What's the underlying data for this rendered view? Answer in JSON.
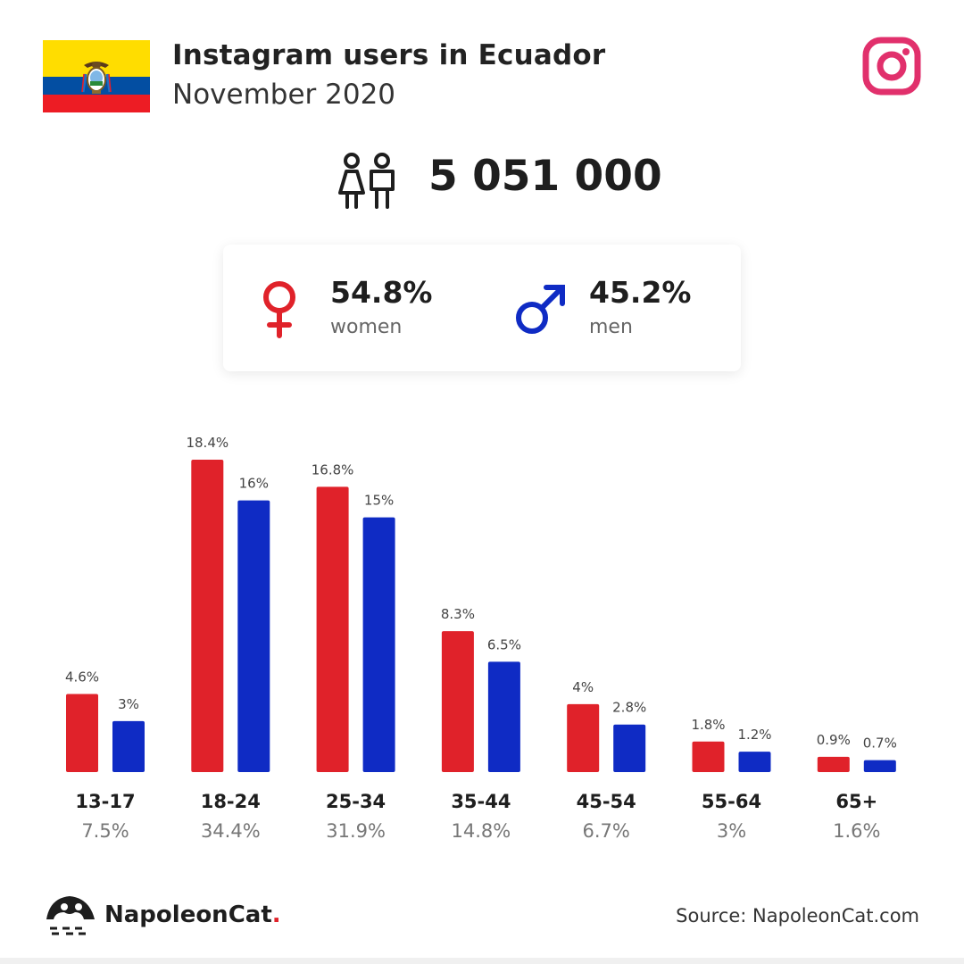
{
  "header": {
    "title": "Instagram users in Ecuador",
    "subtitle": "November 2020"
  },
  "total": {
    "value": "5 051 000"
  },
  "gender": {
    "women_pct": "54.8%",
    "women_label": "women",
    "men_pct": "45.2%",
    "men_label": "men"
  },
  "colors": {
    "women": "#e0222a",
    "men": "#0f2bc4",
    "instagram": "#e1306c",
    "flag_yellow": "#ffdd00",
    "flag_blue": "#034ea2",
    "flag_red": "#ed1c24"
  },
  "footer": {
    "brand": "NapoleonCat",
    "brand_dot": ".",
    "source": "Source: NapoleonCat.com"
  },
  "chart_data": {
    "type": "bar",
    "categories": [
      "13-17",
      "18-24",
      "25-34",
      "35-44",
      "45-54",
      "55-64",
      "65+"
    ],
    "totals": [
      "7.5%",
      "34.4%",
      "31.9%",
      "14.8%",
      "6.7%",
      "3%",
      "1.6%"
    ],
    "series": [
      {
        "name": "women",
        "values": [
          4.6,
          18.4,
          16.8,
          8.3,
          4,
          1.8,
          0.9
        ],
        "labels": [
          "4.6%",
          "18.4%",
          "16.8%",
          "8.3%",
          "4%",
          "1.8%",
          "0.9%"
        ]
      },
      {
        "name": "men",
        "values": [
          3,
          16,
          15,
          6.5,
          2.8,
          1.2,
          0.7
        ],
        "labels": [
          "3%",
          "16%",
          "15%",
          "6.5%",
          "2.8%",
          "1.2%",
          "0.7%"
        ]
      }
    ],
    "ylim": [
      0,
      18.4
    ]
  }
}
